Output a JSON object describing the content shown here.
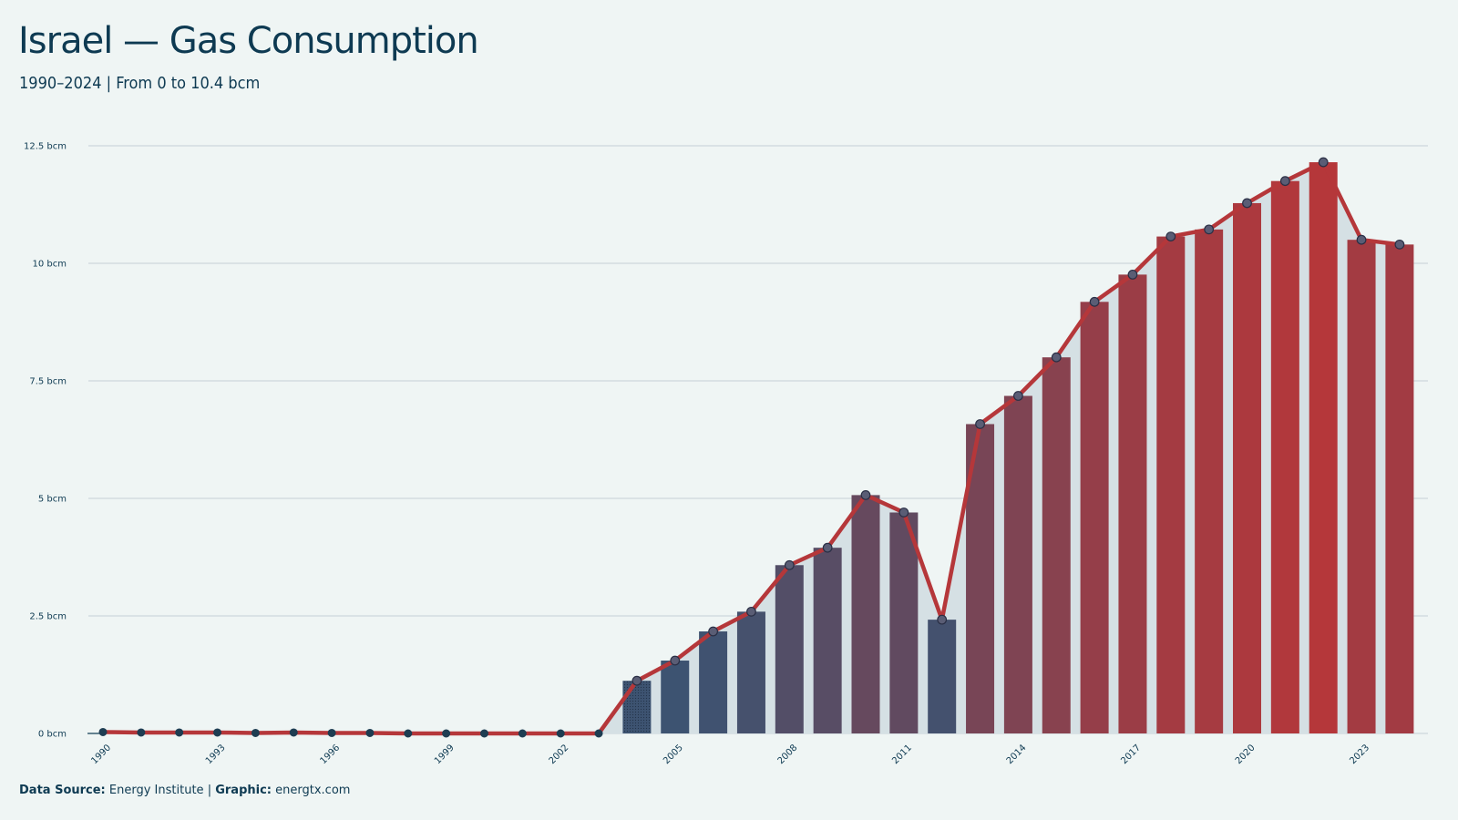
{
  "header": {
    "title": "Israel — Gas Consumption",
    "subtitle": "1990–2024 | From 0 to 10.4 bcm"
  },
  "footer": {
    "source_label": "Data Source:",
    "source_value": "Energy Institute",
    "separator": "|",
    "graphic_label": "Graphic:",
    "graphic_value": "energtx.com"
  },
  "colors": {
    "background": "#eff5f4",
    "line": "#b5373a",
    "low": "#3d5371",
    "high": "#b5373a",
    "area": "#d5e0e4",
    "grid": "#cdd8dc",
    "marker_fill": "#5a5d75",
    "text": "#0e3a52"
  },
  "chart_data": {
    "type": "bar",
    "title": "Israel — Gas Consumption",
    "subtitle": "1990–2024 | From 0 to 10.4 bcm",
    "unit": "bcm",
    "x": [
      1990,
      1991,
      1992,
      1993,
      1994,
      1995,
      1996,
      1997,
      1998,
      1999,
      2000,
      2001,
      2002,
      2003,
      2004,
      2005,
      2006,
      2007,
      2008,
      2009,
      2010,
      2011,
      2012,
      2013,
      2014,
      2015,
      2016,
      2017,
      2018,
      2019,
      2020,
      2021,
      2022,
      2023,
      2024
    ],
    "values": [
      0.03,
      0.02,
      0.02,
      0.02,
      0.01,
      0.02,
      0.01,
      0.01,
      0.0,
      0.0,
      0.0,
      0.0,
      0.0,
      0.0,
      1.12,
      1.55,
      2.17,
      2.59,
      3.58,
      3.95,
      5.07,
      4.7,
      2.42,
      6.58,
      7.18,
      8.0,
      9.18,
      9.76,
      10.57,
      10.72,
      11.28,
      11.75,
      12.15,
      10.5,
      10.4
    ],
    "series": [
      {
        "name": "Gas consumption",
        "type": "bar+line"
      }
    ],
    "x_ticks": [
      "1990",
      "1993",
      "1996",
      "1999",
      "2002",
      "2005",
      "2008",
      "2011",
      "2014",
      "2017",
      "2020",
      "2023"
    ],
    "y_ticks": [
      "0 bcm",
      "2.5 bcm",
      "5 bcm",
      "7.5 bcm",
      "10 bcm",
      "12.5 bcm"
    ],
    "y_tick_values": [
      0,
      2.5,
      5,
      7.5,
      10,
      12.5
    ],
    "ylim": [
      0,
      12.5
    ],
    "grid": true,
    "legend": "none"
  }
}
